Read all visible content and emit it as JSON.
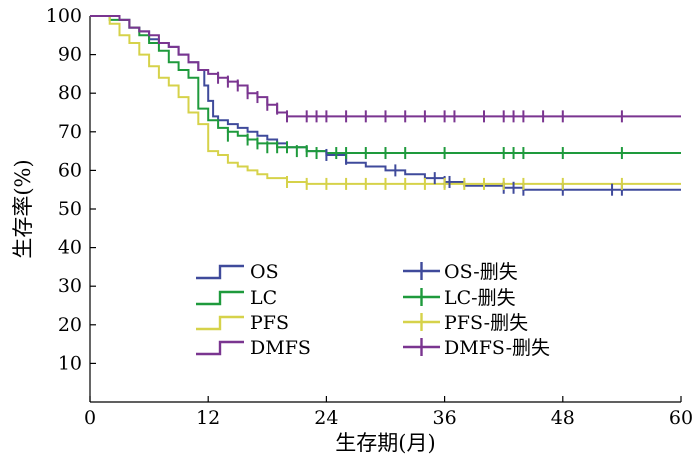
{
  "chart_data": {
    "type": "line",
    "subtype": "kaplan-meier-step",
    "title": "",
    "xlabel": "生存期(月)",
    "ylabel": "生存率(%)",
    "xlim": [
      0,
      60
    ],
    "ylim": [
      0,
      100
    ],
    "x_ticks": [
      0,
      12,
      24,
      36,
      48,
      60
    ],
    "y_ticks": [
      10,
      20,
      30,
      40,
      50,
      60,
      70,
      80,
      90,
      100
    ],
    "grid": false,
    "legend_position": "bottom-center",
    "series": [
      {
        "name": "OS",
        "censor_name": "OS-删失",
        "color": "#3f4a9b",
        "points": [
          [
            0,
            100
          ],
          [
            2,
            100
          ],
          [
            3,
            99
          ],
          [
            4,
            97
          ],
          [
            5,
            96
          ],
          [
            6,
            94
          ],
          [
            7,
            93
          ],
          [
            8,
            92
          ],
          [
            9,
            90
          ],
          [
            10,
            88
          ],
          [
            11,
            86
          ],
          [
            11.6,
            82
          ],
          [
            12,
            78
          ],
          [
            12.5,
            74
          ],
          [
            13,
            73
          ],
          [
            14,
            72
          ],
          [
            15,
            71
          ],
          [
            16,
            70
          ],
          [
            17,
            69
          ],
          [
            18,
            68
          ],
          [
            19,
            67
          ],
          [
            20,
            66
          ],
          [
            22,
            65
          ],
          [
            24,
            64
          ],
          [
            26,
            62
          ],
          [
            28,
            61
          ],
          [
            30,
            60
          ],
          [
            32,
            59
          ],
          [
            34,
            58
          ],
          [
            36,
            57
          ],
          [
            38,
            56
          ],
          [
            40,
            56
          ],
          [
            42,
            55.5
          ],
          [
            44,
            55
          ],
          [
            60,
            55
          ]
        ],
        "censored": [
          [
            24,
            64
          ],
          [
            26,
            63
          ],
          [
            31,
            60
          ],
          [
            35,
            58
          ],
          [
            36,
            57
          ],
          [
            36.5,
            57
          ],
          [
            42,
            55.5
          ],
          [
            43,
            55.5
          ],
          [
            44,
            55
          ],
          [
            48,
            55
          ],
          [
            53,
            55
          ],
          [
            54,
            55
          ]
        ]
      },
      {
        "name": "LC",
        "censor_name": "LC-删失",
        "color": "#1e9a3c",
        "points": [
          [
            0,
            100
          ],
          [
            2,
            99
          ],
          [
            4,
            97
          ],
          [
            5,
            95
          ],
          [
            6,
            93
          ],
          [
            7,
            91
          ],
          [
            8,
            88
          ],
          [
            9,
            86
          ],
          [
            10,
            84
          ],
          [
            11,
            76
          ],
          [
            12,
            73
          ],
          [
            13,
            71
          ],
          [
            14,
            70
          ],
          [
            15,
            69
          ],
          [
            16,
            68
          ],
          [
            17,
            67
          ],
          [
            18,
            67
          ],
          [
            19,
            66
          ],
          [
            20,
            66
          ],
          [
            22,
            65
          ],
          [
            24,
            64.5
          ],
          [
            60,
            64.5
          ]
        ],
        "censored": [
          [
            14,
            69
          ],
          [
            16,
            68
          ],
          [
            17,
            67
          ],
          [
            18,
            66
          ],
          [
            19,
            66
          ],
          [
            20,
            66
          ],
          [
            21,
            65
          ],
          [
            22,
            65
          ],
          [
            23,
            64.5
          ],
          [
            25,
            64.5
          ],
          [
            26,
            64.5
          ],
          [
            28,
            64.5
          ],
          [
            30,
            64.5
          ],
          [
            32,
            64.5
          ],
          [
            36,
            64.5
          ],
          [
            42,
            64.5
          ],
          [
            43,
            64.5
          ],
          [
            44,
            64.5
          ],
          [
            48,
            64.5
          ],
          [
            54,
            64.5
          ]
        ]
      },
      {
        "name": "PFS",
        "censor_name": "PFS-删失",
        "color": "#d6d24a",
        "points": [
          [
            0,
            100
          ],
          [
            2,
            98
          ],
          [
            3,
            95
          ],
          [
            4,
            93
          ],
          [
            5,
            90
          ],
          [
            6,
            87
          ],
          [
            7,
            84
          ],
          [
            8,
            82
          ],
          [
            9,
            79
          ],
          [
            10,
            75
          ],
          [
            11,
            72
          ],
          [
            12,
            65
          ],
          [
            13,
            64
          ],
          [
            14,
            62
          ],
          [
            15,
            61
          ],
          [
            16,
            60
          ],
          [
            17,
            59
          ],
          [
            18,
            58
          ],
          [
            20,
            57
          ],
          [
            22,
            56.5
          ],
          [
            24,
            56.5
          ],
          [
            60,
            56.5
          ]
        ],
        "censored": [
          [
            20,
            57
          ],
          [
            22,
            56.5
          ],
          [
            24,
            56.5
          ],
          [
            26,
            56.5
          ],
          [
            28,
            56.5
          ],
          [
            30,
            56.5
          ],
          [
            32,
            56.5
          ],
          [
            34,
            56.5
          ],
          [
            36,
            56.5
          ],
          [
            38,
            56.5
          ],
          [
            40,
            56.5
          ],
          [
            42,
            56.5
          ],
          [
            44,
            56.5
          ],
          [
            48,
            56.5
          ],
          [
            54,
            56.5
          ]
        ]
      },
      {
        "name": "DMFS",
        "censor_name": "DMFS-删失",
        "color": "#7a3590",
        "points": [
          [
            0,
            100
          ],
          [
            2,
            100
          ],
          [
            3,
            99
          ],
          [
            4,
            97
          ],
          [
            5,
            96
          ],
          [
            6,
            95
          ],
          [
            7,
            93
          ],
          [
            8,
            92
          ],
          [
            9,
            90
          ],
          [
            10,
            88
          ],
          [
            11,
            86
          ],
          [
            12,
            85
          ],
          [
            13,
            84
          ],
          [
            14,
            83
          ],
          [
            15,
            82
          ],
          [
            16,
            80
          ],
          [
            17,
            79
          ],
          [
            18,
            77
          ],
          [
            19,
            75
          ],
          [
            20,
            74
          ],
          [
            60,
            74
          ]
        ],
        "censored": [
          [
            13,
            84
          ],
          [
            14,
            83
          ],
          [
            15,
            82
          ],
          [
            16,
            80
          ],
          [
            17,
            79
          ],
          [
            18,
            77
          ],
          [
            19,
            76
          ],
          [
            20,
            74
          ],
          [
            22,
            74
          ],
          [
            23,
            74
          ],
          [
            24,
            74
          ],
          [
            26,
            74
          ],
          [
            28,
            74
          ],
          [
            30,
            74
          ],
          [
            32,
            74
          ],
          [
            34,
            74
          ],
          [
            36,
            74
          ],
          [
            37,
            74
          ],
          [
            40,
            74
          ],
          [
            42,
            74
          ],
          [
            43,
            74
          ],
          [
            44,
            74
          ],
          [
            46,
            74
          ],
          [
            48,
            74
          ],
          [
            54,
            74
          ]
        ]
      }
    ]
  }
}
